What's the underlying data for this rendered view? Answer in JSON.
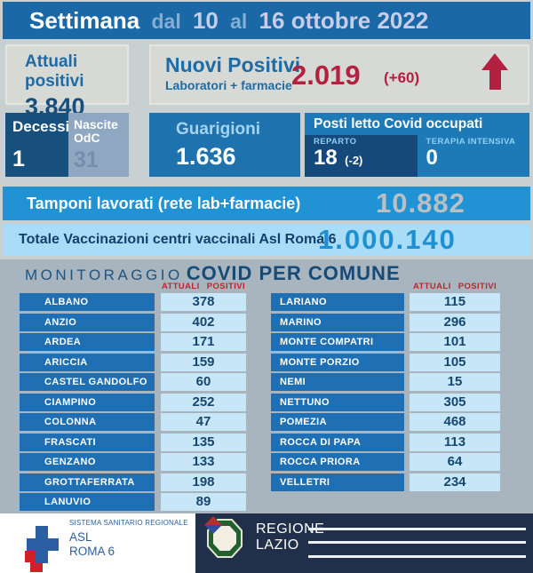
{
  "header": {
    "week_label": "Settimana",
    "from_word": "dal",
    "from_date": "10",
    "to_word": "al",
    "to_date": "16 ottobre 2022"
  },
  "cards": {
    "attuali_positivi": {
      "label": "Attuali positivi",
      "value": "3.840"
    },
    "nuovi_positivi": {
      "label": "Nuovi Positivi",
      "sublabel": "Laboratori + farmacie",
      "value": "2.019",
      "delta": "(+60)"
    },
    "decessi": {
      "label": "Decessi",
      "value": "1"
    },
    "nascite_odc": {
      "label_line1": "Nascite",
      "label_line2": "OdC",
      "value": "31"
    },
    "guarigioni": {
      "label": "Guarigioni",
      "value": "1.636"
    },
    "posti_letto": {
      "title": "Posti letto Covid occupati",
      "reparto_label": "REPARTO",
      "reparto_value": "18",
      "reparto_delta": "(-2)",
      "terapia_label": "TERAPIA INTENSIVA",
      "terapia_value": "0"
    },
    "tamponi": {
      "label": "Tamponi lavorati (rete lab+farmacie)",
      "value": "10.882"
    },
    "vaccinazioni": {
      "label": "Totale Vaccinazioni centri vaccinali Asl Roma 6",
      "value": "1.000.140"
    }
  },
  "comuni": {
    "title_prefix": "MONITORAGGIO",
    "title": "COVID PER COMUNE",
    "column_header": "ATTUALI POSITIVI",
    "left": [
      {
        "name": "ALBANO",
        "value": "378"
      },
      {
        "name": "ANZIO",
        "value": "402"
      },
      {
        "name": "ARDEA",
        "value": "171"
      },
      {
        "name": "ARICCIA",
        "value": "159"
      },
      {
        "name": "CASTEL GANDOLFO",
        "value": "60"
      },
      {
        "name": "CIAMPINO",
        "value": "252"
      },
      {
        "name": "COLONNA",
        "value": "47"
      },
      {
        "name": "FRASCATI",
        "value": "135"
      },
      {
        "name": "GENZANO",
        "value": "133"
      },
      {
        "name": "GROTTAFERRATA",
        "value": "198"
      },
      {
        "name": "LANUVIO",
        "value": "89"
      }
    ],
    "right": [
      {
        "name": "LARIANO",
        "value": "115"
      },
      {
        "name": "MARINO",
        "value": "296"
      },
      {
        "name": "MONTE COMPATRI",
        "value": "101"
      },
      {
        "name": "MONTE PORZIO CATONE",
        "value": "105"
      },
      {
        "name": "NEMI",
        "value": "15"
      },
      {
        "name": "NETTUNO",
        "value": "305"
      },
      {
        "name": "POMEZIA",
        "value": "468"
      },
      {
        "name": "ROCCA DI PAPA",
        "value": "113"
      },
      {
        "name": "ROCCA PRIORA",
        "value": "64"
      },
      {
        "name": "VELLETRI",
        "value": "234"
      }
    ]
  },
  "footer": {
    "ssr_label": "SISTEMA SANITARIO REGIONALE",
    "asl_name_line1": "ASL",
    "asl_name_line2": "ROMA 6",
    "regione_line1": "REGIONE",
    "regione_line2": "LAZIO"
  },
  "colors": {
    "header_blue": "#1a69a6",
    "panel_gray": "#d6d9d4",
    "page_bg": "#c9d0d1",
    "accent_red": "#b22240",
    "dark_navy_box": "#174f7d",
    "steel_blue_box": "#90a7c1",
    "mid_blue_box": "#1e73af",
    "posti_blue": "#1e7ab7",
    "reparto_navy": "#15487b",
    "tamponi_blue": "#2192d4",
    "vacc_light_blue": "#a9dcf6",
    "section_bg": "#a8b4be",
    "name_bar_blue": "#1f6fb4",
    "value_cell_blue": "#c7e7f9",
    "column_header_red": "#c0242e",
    "footer_navy": "#20304a",
    "asl_blue": "#2b5f9e",
    "asl_red": "#cf2028"
  }
}
